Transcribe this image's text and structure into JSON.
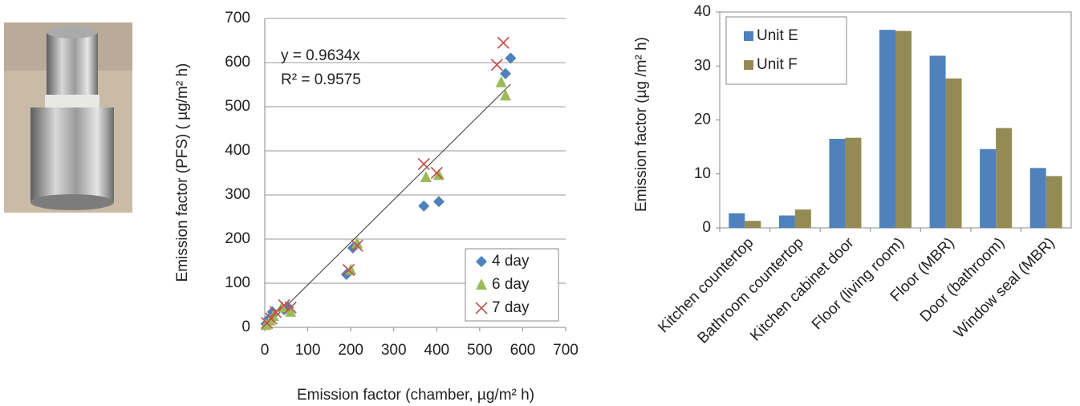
{
  "chart_data": [
    {
      "type": "scatter",
      "x_label": "Emission factor (chamber, µg/m² h)",
      "y_label": "Emission factor (PFS) ( µg/m² h)",
      "annotations": [
        "y = 0.9634x",
        "R² = 0.9575"
      ],
      "trendline_slope": 0.9634,
      "xlim": [
        0,
        700
      ],
      "xticks": [
        0,
        100,
        200,
        300,
        400,
        500,
        600,
        700
      ],
      "ylim": [
        0,
        700
      ],
      "yticks": [
        0,
        100,
        200,
        300,
        400,
        500,
        600,
        700
      ],
      "grid": true,
      "legend": "lower right",
      "series": [
        {
          "name": "4 day",
          "color": "#4f81bd",
          "marker": "diamond",
          "x": [
            3,
            10,
            18,
            45,
            55,
            190,
            205,
            370,
            405,
            560,
            572
          ],
          "values": [
            8,
            20,
            35,
            40,
            45,
            120,
            180,
            275,
            285,
            575,
            610
          ]
        },
        {
          "name": "6 day",
          "color": "#9bbb59",
          "marker": "triangle",
          "x": [
            3,
            12,
            20,
            40,
            60,
            200,
            215,
            375,
            405,
            550,
            560
          ],
          "values": [
            5,
            15,
            25,
            45,
            35,
            130,
            190,
            340,
            345,
            555,
            525
          ]
        },
        {
          "name": "7 day",
          "color": "#c0504d",
          "marker": "x",
          "x": [
            5,
            15,
            25,
            45,
            60,
            195,
            215,
            370,
            400,
            540,
            555
          ],
          "values": [
            10,
            20,
            35,
            50,
            45,
            130,
            185,
            370,
            350,
            595,
            645
          ]
        }
      ]
    },
    {
      "type": "bar",
      "y_label": "Emission factor (µg /m² h)",
      "categories": [
        "Kitchen countertop",
        "Bathroom countertop",
        "Kitchen cabinet door",
        "Floor (living room)",
        "Floor (MBR)",
        "Door (bathroom)",
        "Window seal (MBR)"
      ],
      "ylim": [
        0,
        40
      ],
      "yticks": [
        0,
        10,
        20,
        30,
        40
      ],
      "grid": false,
      "legend": "upper left",
      "series": [
        {
          "name": "Unit E",
          "color": "#4f81bd",
          "values": [
            2.7,
            2.3,
            16.5,
            36.7,
            31.9,
            14.6,
            11.1
          ]
        },
        {
          "name": "Unit F",
          "color": "#948a54",
          "values": [
            1.3,
            3.4,
            16.7,
            36.5,
            27.7,
            18.5,
            9.6
          ]
        }
      ]
    }
  ]
}
